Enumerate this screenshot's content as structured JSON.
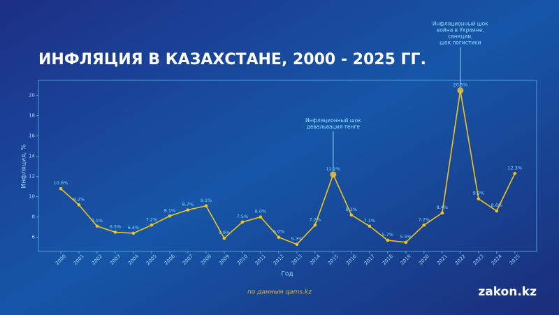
{
  "chart_data": {
    "type": "line",
    "title": "ИНФЛЯЦИЯ В КАЗАХСТАНЕ, 2000 - 2025 ГГ.",
    "x_label": "Год",
    "y_label": "Инфляция, %",
    "source": "по данным qams.kz",
    "logo": "zakon.kz",
    "x": [
      2000,
      2001,
      2002,
      2003,
      2004,
      2005,
      2006,
      2007,
      2008,
      2009,
      2010,
      2011,
      2012,
      2013,
      2014,
      2015,
      2016,
      2017,
      2018,
      2019,
      2020,
      2021,
      2022,
      2023,
      2024,
      2025
    ],
    "values": [
      10.8,
      9.2,
      7.1,
      6.5,
      6.4,
      7.2,
      8.1,
      8.7,
      9.1,
      5.9,
      7.5,
      8.0,
      6.0,
      5.3,
      7.2,
      12.2,
      8.2,
      7.1,
      5.7,
      5.5,
      7.2,
      8.4,
      20.5,
      9.8,
      8.6,
      12.3
    ],
    "value_labels": [
      "10.8%",
      "9.2%",
      "7.1%",
      "6.5%",
      "6.4%",
      "7.2%",
      "8.1%",
      "8.7%",
      "9.1%",
      "5.9%",
      "7.5%",
      "8.0%",
      "6.0%",
      "5.3%",
      "7.2%",
      "12.2%",
      "8.2%",
      "7.1%",
      "5.7%",
      "5.5%",
      "7.2%",
      "8.4%",
      "20.5%",
      "9.8%",
      "8.6%",
      "12.3%"
    ],
    "color": "#f2c418",
    "xlim": [
      1998.77,
      2026.2
    ],
    "xticks": [
      2000,
      2001,
      2002,
      2003,
      2004,
      2005,
      2006,
      2007,
      2008,
      2009,
      2010,
      2011,
      2012,
      2013,
      2014,
      2015,
      2016,
      2017,
      2018,
      2019,
      2020,
      2021,
      2022,
      2023,
      2024,
      2025
    ],
    "ylim": [
      4.6,
      21.5
    ],
    "yticks": [
      6,
      8,
      10,
      12,
      14,
      16,
      18,
      20
    ],
    "annotations": [
      {
        "lines": [
          "Инфляционный шок",
          "девальвация тенге"
        ],
        "x": 2015,
        "y": 12.2
      },
      {
        "lines": [
          "Инфляционный шок",
          "война в Украине,",
          "санкции,",
          "шок логистики"
        ],
        "x": 2022,
        "y": 20.5
      }
    ]
  }
}
